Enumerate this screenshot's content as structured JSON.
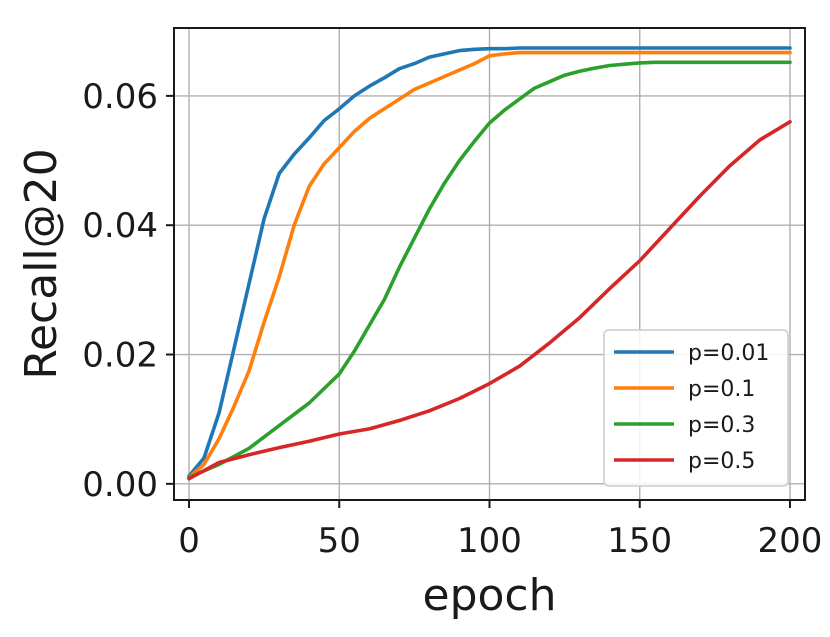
{
  "chart_data": {
    "type": "line",
    "title": "",
    "xlabel": "epoch",
    "ylabel": "Recall@20",
    "xlim": [
      -5,
      205
    ],
    "ylim": [
      -0.0025,
      0.0705
    ],
    "xticks": [
      0,
      50,
      100,
      150,
      200
    ],
    "xtick_labels": [
      "0",
      "50",
      "100",
      "150",
      "200"
    ],
    "yticks": [
      0.0,
      0.02,
      0.04,
      0.06
    ],
    "ytick_labels": [
      "0.00",
      "0.02",
      "0.04",
      "0.06"
    ],
    "grid": true,
    "legend_position": "lower-right",
    "series": [
      {
        "name": "p=0.01",
        "color": "#1f77b4",
        "x": [
          0,
          5,
          10,
          15,
          20,
          25,
          30,
          35,
          40,
          45,
          50,
          55,
          60,
          65,
          70,
          75,
          80,
          85,
          90,
          95,
          100,
          105,
          110,
          120,
          140,
          160,
          180,
          200
        ],
        "y": [
          0.0012,
          0.004,
          0.011,
          0.021,
          0.031,
          0.041,
          0.048,
          0.051,
          0.0535,
          0.0562,
          0.058,
          0.06,
          0.0615,
          0.0628,
          0.0642,
          0.065,
          0.066,
          0.0665,
          0.067,
          0.0672,
          0.0673,
          0.0673,
          0.0674,
          0.0674,
          0.0674,
          0.0674,
          0.0674,
          0.0674
        ]
      },
      {
        "name": "p=0.1",
        "color": "#ff7f0e",
        "x": [
          0,
          5,
          10,
          15,
          20,
          25,
          30,
          35,
          40,
          45,
          50,
          55,
          60,
          65,
          70,
          75,
          80,
          85,
          90,
          95,
          100,
          105,
          110,
          120,
          140,
          160,
          180,
          200
        ],
        "y": [
          0.001,
          0.003,
          0.007,
          0.012,
          0.0175,
          0.025,
          0.032,
          0.04,
          0.046,
          0.0495,
          0.052,
          0.0545,
          0.0565,
          0.058,
          0.0595,
          0.061,
          0.062,
          0.063,
          0.064,
          0.065,
          0.0662,
          0.0665,
          0.0667,
          0.0667,
          0.0667,
          0.0667,
          0.0667,
          0.0667
        ]
      },
      {
        "name": "p=0.3",
        "color": "#2ca02c",
        "x": [
          0,
          10,
          20,
          30,
          40,
          50,
          55,
          60,
          65,
          70,
          75,
          80,
          85,
          90,
          95,
          100,
          105,
          110,
          115,
          120,
          125,
          130,
          135,
          140,
          145,
          150,
          155,
          160,
          180,
          200
        ],
        "y": [
          0.001,
          0.003,
          0.0055,
          0.009,
          0.0125,
          0.017,
          0.0205,
          0.0245,
          0.0285,
          0.0335,
          0.038,
          0.0425,
          0.0465,
          0.05,
          0.053,
          0.0558,
          0.0578,
          0.0595,
          0.0612,
          0.0622,
          0.0632,
          0.0638,
          0.0643,
          0.0647,
          0.0649,
          0.0651,
          0.0652,
          0.0652,
          0.0652,
          0.0652
        ]
      },
      {
        "name": "p=0.5",
        "color": "#d62728",
        "x": [
          0,
          10,
          20,
          30,
          40,
          50,
          60,
          70,
          80,
          90,
          100,
          110,
          120,
          130,
          140,
          150,
          160,
          170,
          180,
          190,
          200
        ],
        "y": [
          0.0008,
          0.0033,
          0.0045,
          0.0056,
          0.0066,
          0.0077,
          0.0085,
          0.0098,
          0.0113,
          0.0132,
          0.0155,
          0.0182,
          0.0218,
          0.0257,
          0.0302,
          0.0345,
          0.0395,
          0.0445,
          0.0492,
          0.0532,
          0.056
        ]
      }
    ]
  }
}
